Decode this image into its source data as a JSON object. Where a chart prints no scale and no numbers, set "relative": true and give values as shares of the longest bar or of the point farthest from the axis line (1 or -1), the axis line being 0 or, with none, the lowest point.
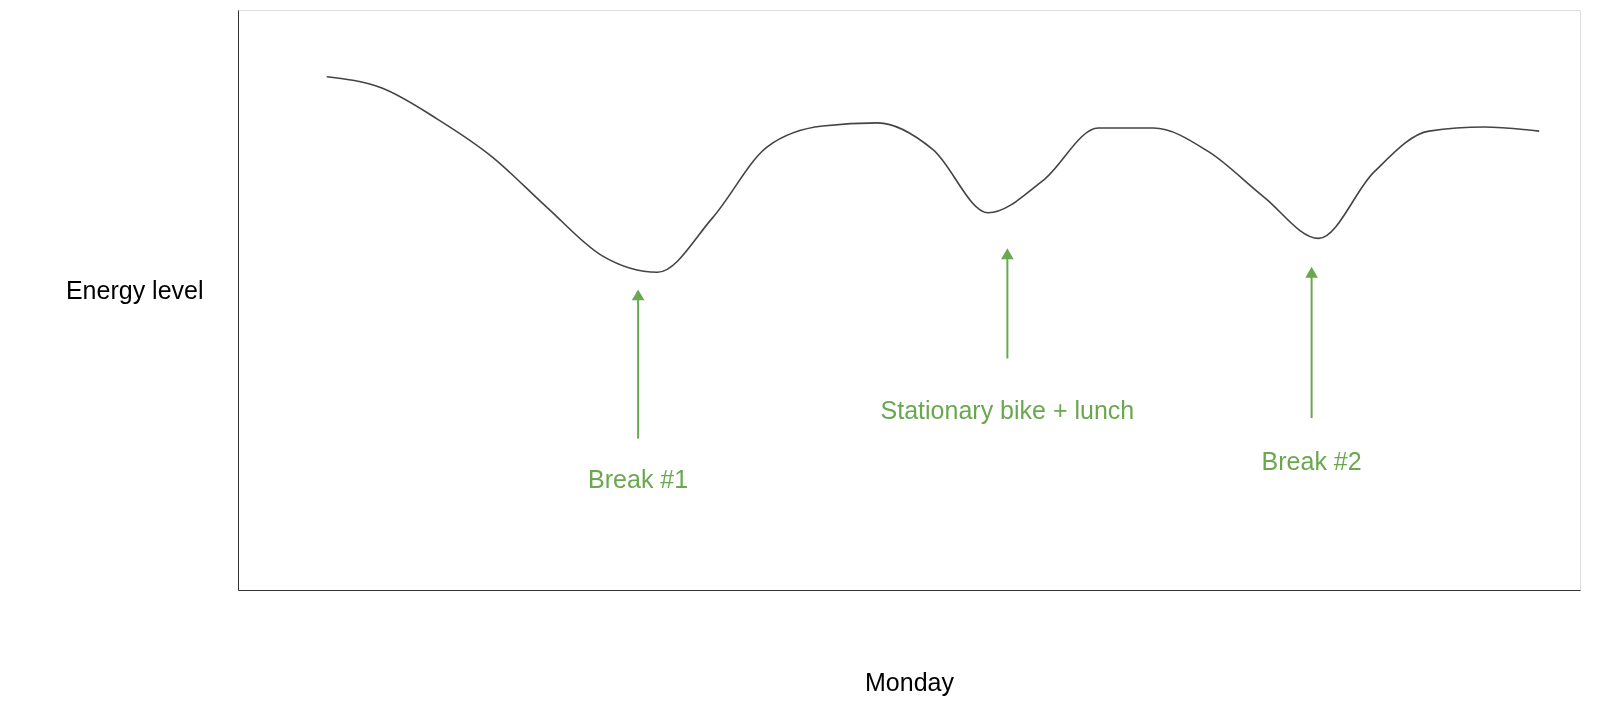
{
  "chart_data": {
    "type": "line",
    "relative": true,
    "xlabel": "Monday",
    "ylabel": "Energy level",
    "categories": [
      null,
      null,
      null,
      null,
      null,
      null,
      null,
      null,
      null,
      null,
      null,
      null,
      null,
      null,
      null,
      null,
      null,
      null,
      null,
      null,
      null,
      null,
      null
    ],
    "series": [
      {
        "color": "#444444",
        "values": [
          1.0,
          0.978,
          0.918,
          0.844,
          0.745,
          0.651,
          0.619,
          0.725,
          0.864,
          0.904,
          0.91,
          0.858,
          0.735,
          0.798,
          0.9,
          0.9,
          0.854,
          0.766,
          0.685,
          0.814,
          0.894,
          0.902,
          0.894
        ]
      }
    ],
    "annotations": [
      "Break #1",
      "Stationary bike + lunch",
      "Break #2"
    ],
    "grid": false
  }
}
